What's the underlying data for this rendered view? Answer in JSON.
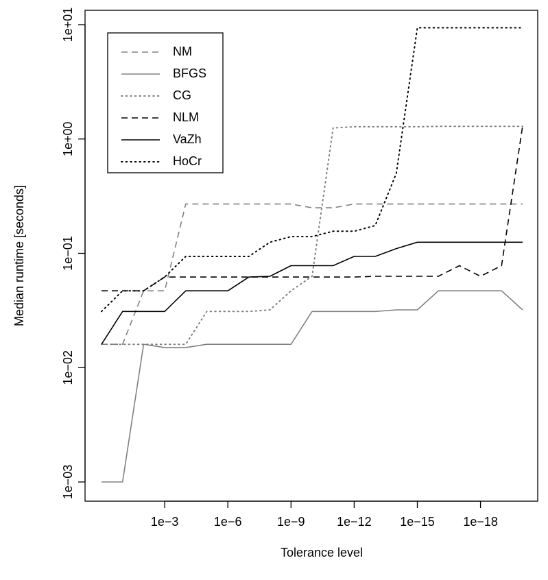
{
  "chart_data": {
    "type": "line",
    "title": "",
    "xlabel": "Tolerance level",
    "ylabel": "Median runtime [seconds]",
    "x_scale": "log",
    "y_scale": "log",
    "x": [
      1,
      0.1,
      0.01,
      0.001,
      0.0001,
      1e-05,
      1e-06,
      1e-07,
      1e-08,
      1e-09,
      1e-10,
      1e-11,
      1e-12,
      1e-13,
      1e-14,
      1e-15,
      1e-16,
      1e-17,
      1e-18,
      1e-19,
      1e-20
    ],
    "xlim": [
      1,
      1e-20
    ],
    "ylim": [
      0.001,
      10
    ],
    "x_ticks": [
      0.001,
      1e-06,
      1e-09,
      1e-12,
      1e-15,
      1e-18
    ],
    "x_tick_labels": [
      "1e−3",
      "1e−6",
      "1e−9",
      "1e−12",
      "1e−15",
      "1e−18"
    ],
    "y_ticks": [
      0.001,
      0.01,
      0.1,
      1,
      10
    ],
    "y_tick_labels": [
      "1e−03",
      "1e−02",
      "1e−01",
      "1e+00",
      "1e+01"
    ],
    "legend": {
      "position": "top-left",
      "framed": true
    },
    "grid": false,
    "series": [
      {
        "name": "NM",
        "color": "#808080",
        "line_style": "dashed",
        "values": [
          0.016,
          0.016,
          0.047,
          0.047,
          0.27,
          0.27,
          0.27,
          0.27,
          0.27,
          0.27,
          0.25,
          0.25,
          0.27,
          0.27,
          0.27,
          0.27,
          0.27,
          0.27,
          0.27,
          0.27,
          0.27
        ]
      },
      {
        "name": "BFGS",
        "color": "#808080",
        "line_style": "solid",
        "values": [
          0.001,
          0.001,
          0.016,
          0.015,
          0.015,
          0.016,
          0.016,
          0.016,
          0.016,
          0.016,
          0.031,
          0.031,
          0.031,
          0.031,
          0.032,
          0.032,
          0.047,
          0.047,
          0.047,
          0.047,
          0.032
        ]
      },
      {
        "name": "CG",
        "color": "#808080",
        "line_style": "dotted",
        "values": [
          0.016,
          0.016,
          0.016,
          0.016,
          0.016,
          0.031,
          0.031,
          0.031,
          0.032,
          0.047,
          0.063,
          1.25,
          1.28,
          1.28,
          1.28,
          1.28,
          1.29,
          1.29,
          1.29,
          1.29,
          1.29
        ]
      },
      {
        "name": "NLM",
        "color": "#000000",
        "line_style": "dashed",
        "values": [
          0.047,
          0.047,
          0.047,
          0.062,
          0.062,
          0.062,
          0.062,
          0.062,
          0.062,
          0.062,
          0.062,
          0.062,
          0.062,
          0.063,
          0.063,
          0.063,
          0.063,
          0.078,
          0.063,
          0.078,
          1.3
        ]
      },
      {
        "name": "VaZh",
        "color": "#000000",
        "line_style": "solid",
        "values": [
          0.016,
          0.031,
          0.031,
          0.031,
          0.047,
          0.047,
          0.047,
          0.062,
          0.063,
          0.078,
          0.078,
          0.078,
          0.094,
          0.094,
          0.11,
          0.125,
          0.125,
          0.125,
          0.125,
          0.125,
          0.125
        ]
      },
      {
        "name": "HoCr",
        "color": "#000000",
        "line_style": "dotted",
        "values": [
          0.031,
          0.047,
          0.047,
          0.062,
          0.094,
          0.094,
          0.094,
          0.094,
          0.125,
          0.14,
          0.14,
          0.156,
          0.156,
          0.175,
          0.5,
          9.4,
          9.4,
          9.4,
          9.4,
          9.4,
          9.4
        ]
      }
    ]
  }
}
